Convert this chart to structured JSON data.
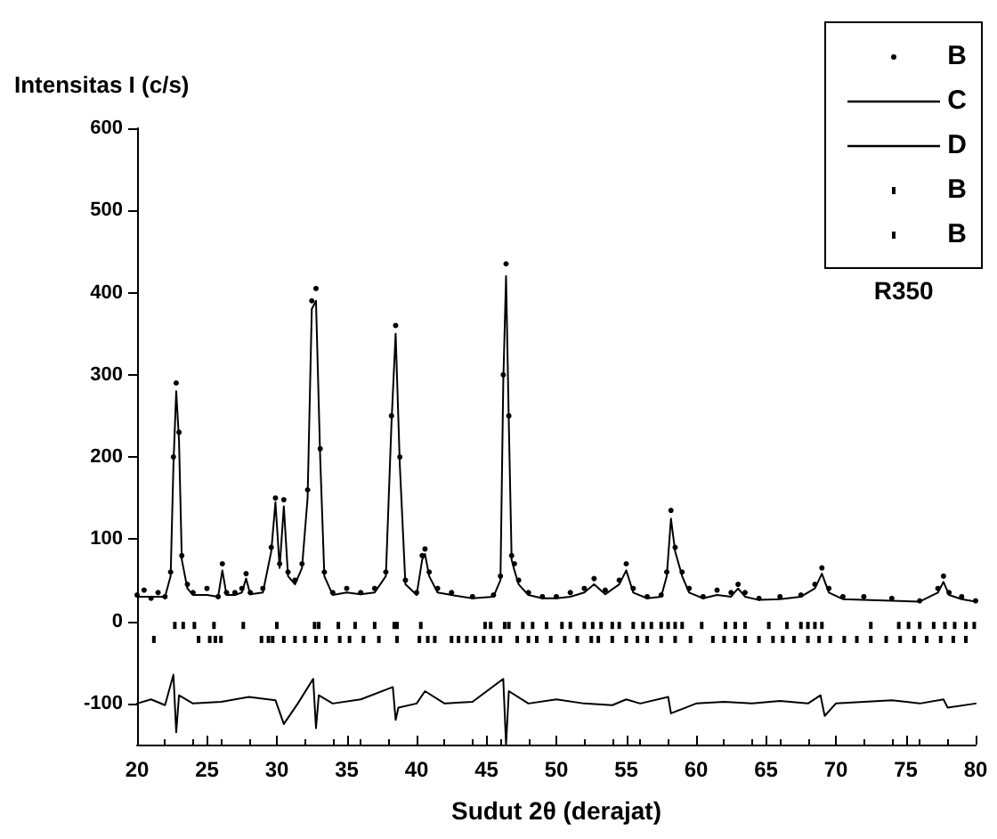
{
  "chart_data": {
    "type": "scatter",
    "xlabel": "Sudut 2θ (derajat)",
    "ylabel": "Intensitas I (c/s)",
    "annotations": [
      "R350"
    ],
    "xlim": [
      20,
      80
    ],
    "xticks": [
      20,
      25,
      30,
      35,
      40,
      45,
      50,
      55,
      60,
      65,
      70,
      75,
      80
    ],
    "ylim": [
      -150,
      600
    ],
    "yticks": [
      -100,
      0,
      100,
      200,
      300,
      400,
      500,
      600
    ],
    "legend": "top right",
    "grid": false,
    "series": [
      {
        "name": "B",
        "marker": "circle",
        "color": "#000000",
        "x": [
          20,
          20.5,
          21,
          21.5,
          22,
          22.4,
          22.6,
          22.8,
          23.0,
          23.2,
          23.6,
          24,
          25,
          25.8,
          26.1,
          26.4,
          27,
          27.5,
          27.8,
          28.1,
          29,
          29.6,
          29.9,
          30.2,
          30.5,
          30.8,
          31.3,
          31.8,
          32.2,
          32.5,
          32.8,
          33.1,
          33.4,
          34,
          35,
          36,
          37,
          37.8,
          38.2,
          38.5,
          38.8,
          39.2,
          40,
          40.4,
          40.6,
          40.9,
          41.5,
          42.5,
          44,
          45.5,
          46.0,
          46.2,
          46.4,
          46.6,
          46.8,
          47.0,
          47.3,
          48,
          49,
          50,
          51,
          52,
          52.7,
          53.5,
          54.5,
          55,
          55.5,
          56.5,
          57.5,
          57.9,
          58.2,
          58.5,
          59.0,
          59.5,
          60.5,
          61.5,
          62.5,
          63,
          63.5,
          64.5,
          66,
          67.5,
          68.5,
          69,
          69.5,
          70.5,
          72,
          74,
          76,
          77.3,
          77.7,
          78.1,
          79,
          80
        ],
        "values": [
          32,
          38,
          28,
          35,
          30,
          60,
          200,
          290,
          230,
          80,
          45,
          35,
          40,
          30,
          70,
          35,
          35,
          40,
          58,
          35,
          40,
          90,
          150,
          70,
          148,
          60,
          50,
          70,
          160,
          390,
          405,
          210,
          60,
          35,
          40,
          35,
          40,
          60,
          250,
          360,
          200,
          50,
          35,
          80,
          88,
          60,
          40,
          35,
          30,
          32,
          55,
          300,
          435,
          250,
          80,
          70,
          50,
          35,
          30,
          30,
          35,
          40,
          52,
          38,
          50,
          70,
          40,
          30,
          32,
          60,
          135,
          90,
          60,
          40,
          30,
          38,
          35,
          45,
          35,
          28,
          30,
          32,
          45,
          65,
          40,
          30,
          30,
          28,
          25,
          40,
          55,
          35,
          30,
          25
        ]
      },
      {
        "name": "C",
        "type": "line",
        "marker": "none",
        "line_style": "solid",
        "color": "#000000",
        "x": [
          20,
          20.5,
          21,
          21.5,
          22,
          22.4,
          22.6,
          22.8,
          23.0,
          23.2,
          23.6,
          24,
          25,
          25.8,
          26.1,
          26.4,
          27,
          27.5,
          27.8,
          28.1,
          29,
          29.6,
          29.9,
          30.2,
          30.5,
          30.8,
          31.3,
          31.8,
          32.2,
          32.5,
          32.8,
          33.1,
          33.4,
          34,
          35,
          36,
          37,
          37.8,
          38.2,
          38.5,
          38.8,
          39.2,
          40,
          40.4,
          40.6,
          40.9,
          41.5,
          42.5,
          44,
          45.5,
          46.0,
          46.2,
          46.4,
          46.6,
          46.8,
          47.0,
          47.3,
          48,
          49,
          50,
          51,
          52,
          52.7,
          53.5,
          54.5,
          55,
          55.5,
          56.5,
          57.5,
          57.9,
          58.2,
          58.5,
          59.0,
          59.5,
          60.5,
          61.5,
          62.5,
          63,
          63.5,
          64.5,
          66,
          67.5,
          68.5,
          69,
          69.5,
          70.5,
          72,
          74,
          76,
          77.3,
          77.7,
          78.1,
          79,
          80
        ],
        "values": [
          30,
          30,
          30,
          30,
          30,
          55,
          190,
          280,
          220,
          75,
          40,
          32,
          32,
          30,
          62,
          32,
          32,
          35,
          52,
          33,
          35,
          85,
          145,
          65,
          140,
          55,
          45,
          65,
          150,
          380,
          390,
          200,
          55,
          32,
          35,
          33,
          35,
          55,
          240,
          350,
          190,
          45,
          32,
          75,
          82,
          55,
          35,
          32,
          28,
          30,
          50,
          290,
          420,
          240,
          75,
          62,
          45,
          32,
          28,
          28,
          30,
          35,
          45,
          33,
          45,
          62,
          35,
          28,
          30,
          55,
          125,
          85,
          55,
          35,
          28,
          32,
          30,
          40,
          30,
          26,
          27,
          30,
          40,
          58,
          35,
          27,
          26,
          25,
          24,
          35,
          48,
          32,
          27,
          24
        ]
      },
      {
        "name": "D",
        "type": "line",
        "marker": "none",
        "line_style": "solid",
        "color": "#000000",
        "x": [
          20,
          21,
          22,
          22.6,
          22.8,
          23.0,
          24,
          26,
          28,
          29.9,
          30.5,
          31.5,
          32.6,
          32.8,
          33.0,
          34,
          36,
          38.3,
          38.5,
          38.7,
          40,
          40.6,
          42,
          44,
          46.2,
          46.4,
          46.6,
          48,
          50,
          52,
          54,
          55,
          56,
          58,
          58.2,
          60,
          62,
          64,
          66,
          68,
          68.9,
          69.2,
          70,
          72,
          74,
          76,
          77.7,
          78,
          80
        ],
        "values": [
          -100,
          -95,
          -102,
          -65,
          -135,
          -90,
          -100,
          -98,
          -92,
          -96,
          -125,
          -100,
          -70,
          -130,
          -90,
          -100,
          -95,
          -80,
          -120,
          -105,
          -100,
          -85,
          -100,
          -98,
          -70,
          -150,
          -85,
          -100,
          -95,
          -100,
          -102,
          -95,
          -100,
          -92,
          -112,
          -100,
          -98,
          -100,
          -97,
          -100,
          -90,
          -115,
          -100,
          -98,
          -96,
          -100,
          -95,
          -105,
          -100
        ]
      },
      {
        "name": "B",
        "marker": "square",
        "color": "#000000",
        "x": [
          22.7,
          23.3,
          24.1,
          25.5,
          27.6,
          30.0,
          32.7,
          33.0,
          34.4,
          35.6,
          37.0,
          38.4,
          38.6,
          40.3,
          44.9,
          45.3,
          46.3,
          46.6,
          47.6,
          48.3,
          49.3,
          50.4,
          51.0,
          52.0,
          52.6,
          53.2,
          54.0,
          54.5,
          55.5,
          56.2,
          56.8,
          57.5,
          58.0,
          58.5,
          59.0,
          60.4,
          62.1,
          62.8,
          63.5,
          65.2,
          66.5,
          67.5,
          68.0,
          68.5,
          69.0,
          72.5,
          74.5,
          75.2,
          76.0,
          77.0,
          77.8,
          78.5,
          79.3,
          79.9
        ],
        "values": [
          -5,
          -5,
          -5,
          -5,
          -5,
          -5,
          -5,
          -5,
          -5,
          -5,
          -5,
          -5,
          -5,
          -5,
          -5,
          -5,
          -5,
          -5,
          -5,
          -5,
          -5,
          -5,
          -5,
          -5,
          -5,
          -5,
          -5,
          -5,
          -5,
          -5,
          -5,
          -5,
          -5,
          -5,
          -5,
          -5,
          -5,
          -5,
          -5,
          -5,
          -5,
          -5,
          -5,
          -5,
          -5,
          -5,
          -5,
          -5,
          -5,
          -5,
          -5,
          -5,
          -5,
          -5
        ]
      },
      {
        "name": "B",
        "marker": "square",
        "color": "#000000",
        "x": [
          21.2,
          24.4,
          25.2,
          25.6,
          26.0,
          28.9,
          29.4,
          29.7,
          30.5,
          31.3,
          32.0,
          32.8,
          33.5,
          34.5,
          35.2,
          36.2,
          37.3,
          38.6,
          40.2,
          40.8,
          41.3,
          42.5,
          43.0,
          43.6,
          44.2,
          44.8,
          45.5,
          46.0,
          47.2,
          48.0,
          48.6,
          49.6,
          50.6,
          51.5,
          52.5,
          53.0,
          54.0,
          55.0,
          55.8,
          56.5,
          57.5,
          58.5,
          59.6,
          61.2,
          62.0,
          62.8,
          63.5,
          64.5,
          65.5,
          66.2,
          67.0,
          68.0,
          68.8,
          69.6,
          70.6,
          71.5,
          72.5,
          73.6,
          74.6,
          75.6,
          76.5,
          77.5,
          78.4,
          79.3
        ],
        "values": [
          -22,
          -22,
          -22,
          -22,
          -22,
          -22,
          -22,
          -22,
          -22,
          -22,
          -22,
          -22,
          -22,
          -22,
          -22,
          -22,
          -22,
          -22,
          -22,
          -22,
          -22,
          -22,
          -22,
          -22,
          -22,
          -22,
          -22,
          -22,
          -22,
          -22,
          -22,
          -22,
          -22,
          -22,
          -22,
          -22,
          -22,
          -22,
          -22,
          -22,
          -22,
          -22,
          -22,
          -22,
          -22,
          -22,
          -22,
          -22,
          -22,
          -22,
          -22,
          -22,
          -22,
          -22,
          -22,
          -22,
          -22,
          -22,
          -22,
          -22,
          -22,
          -22,
          -22,
          -22
        ]
      }
    ]
  }
}
